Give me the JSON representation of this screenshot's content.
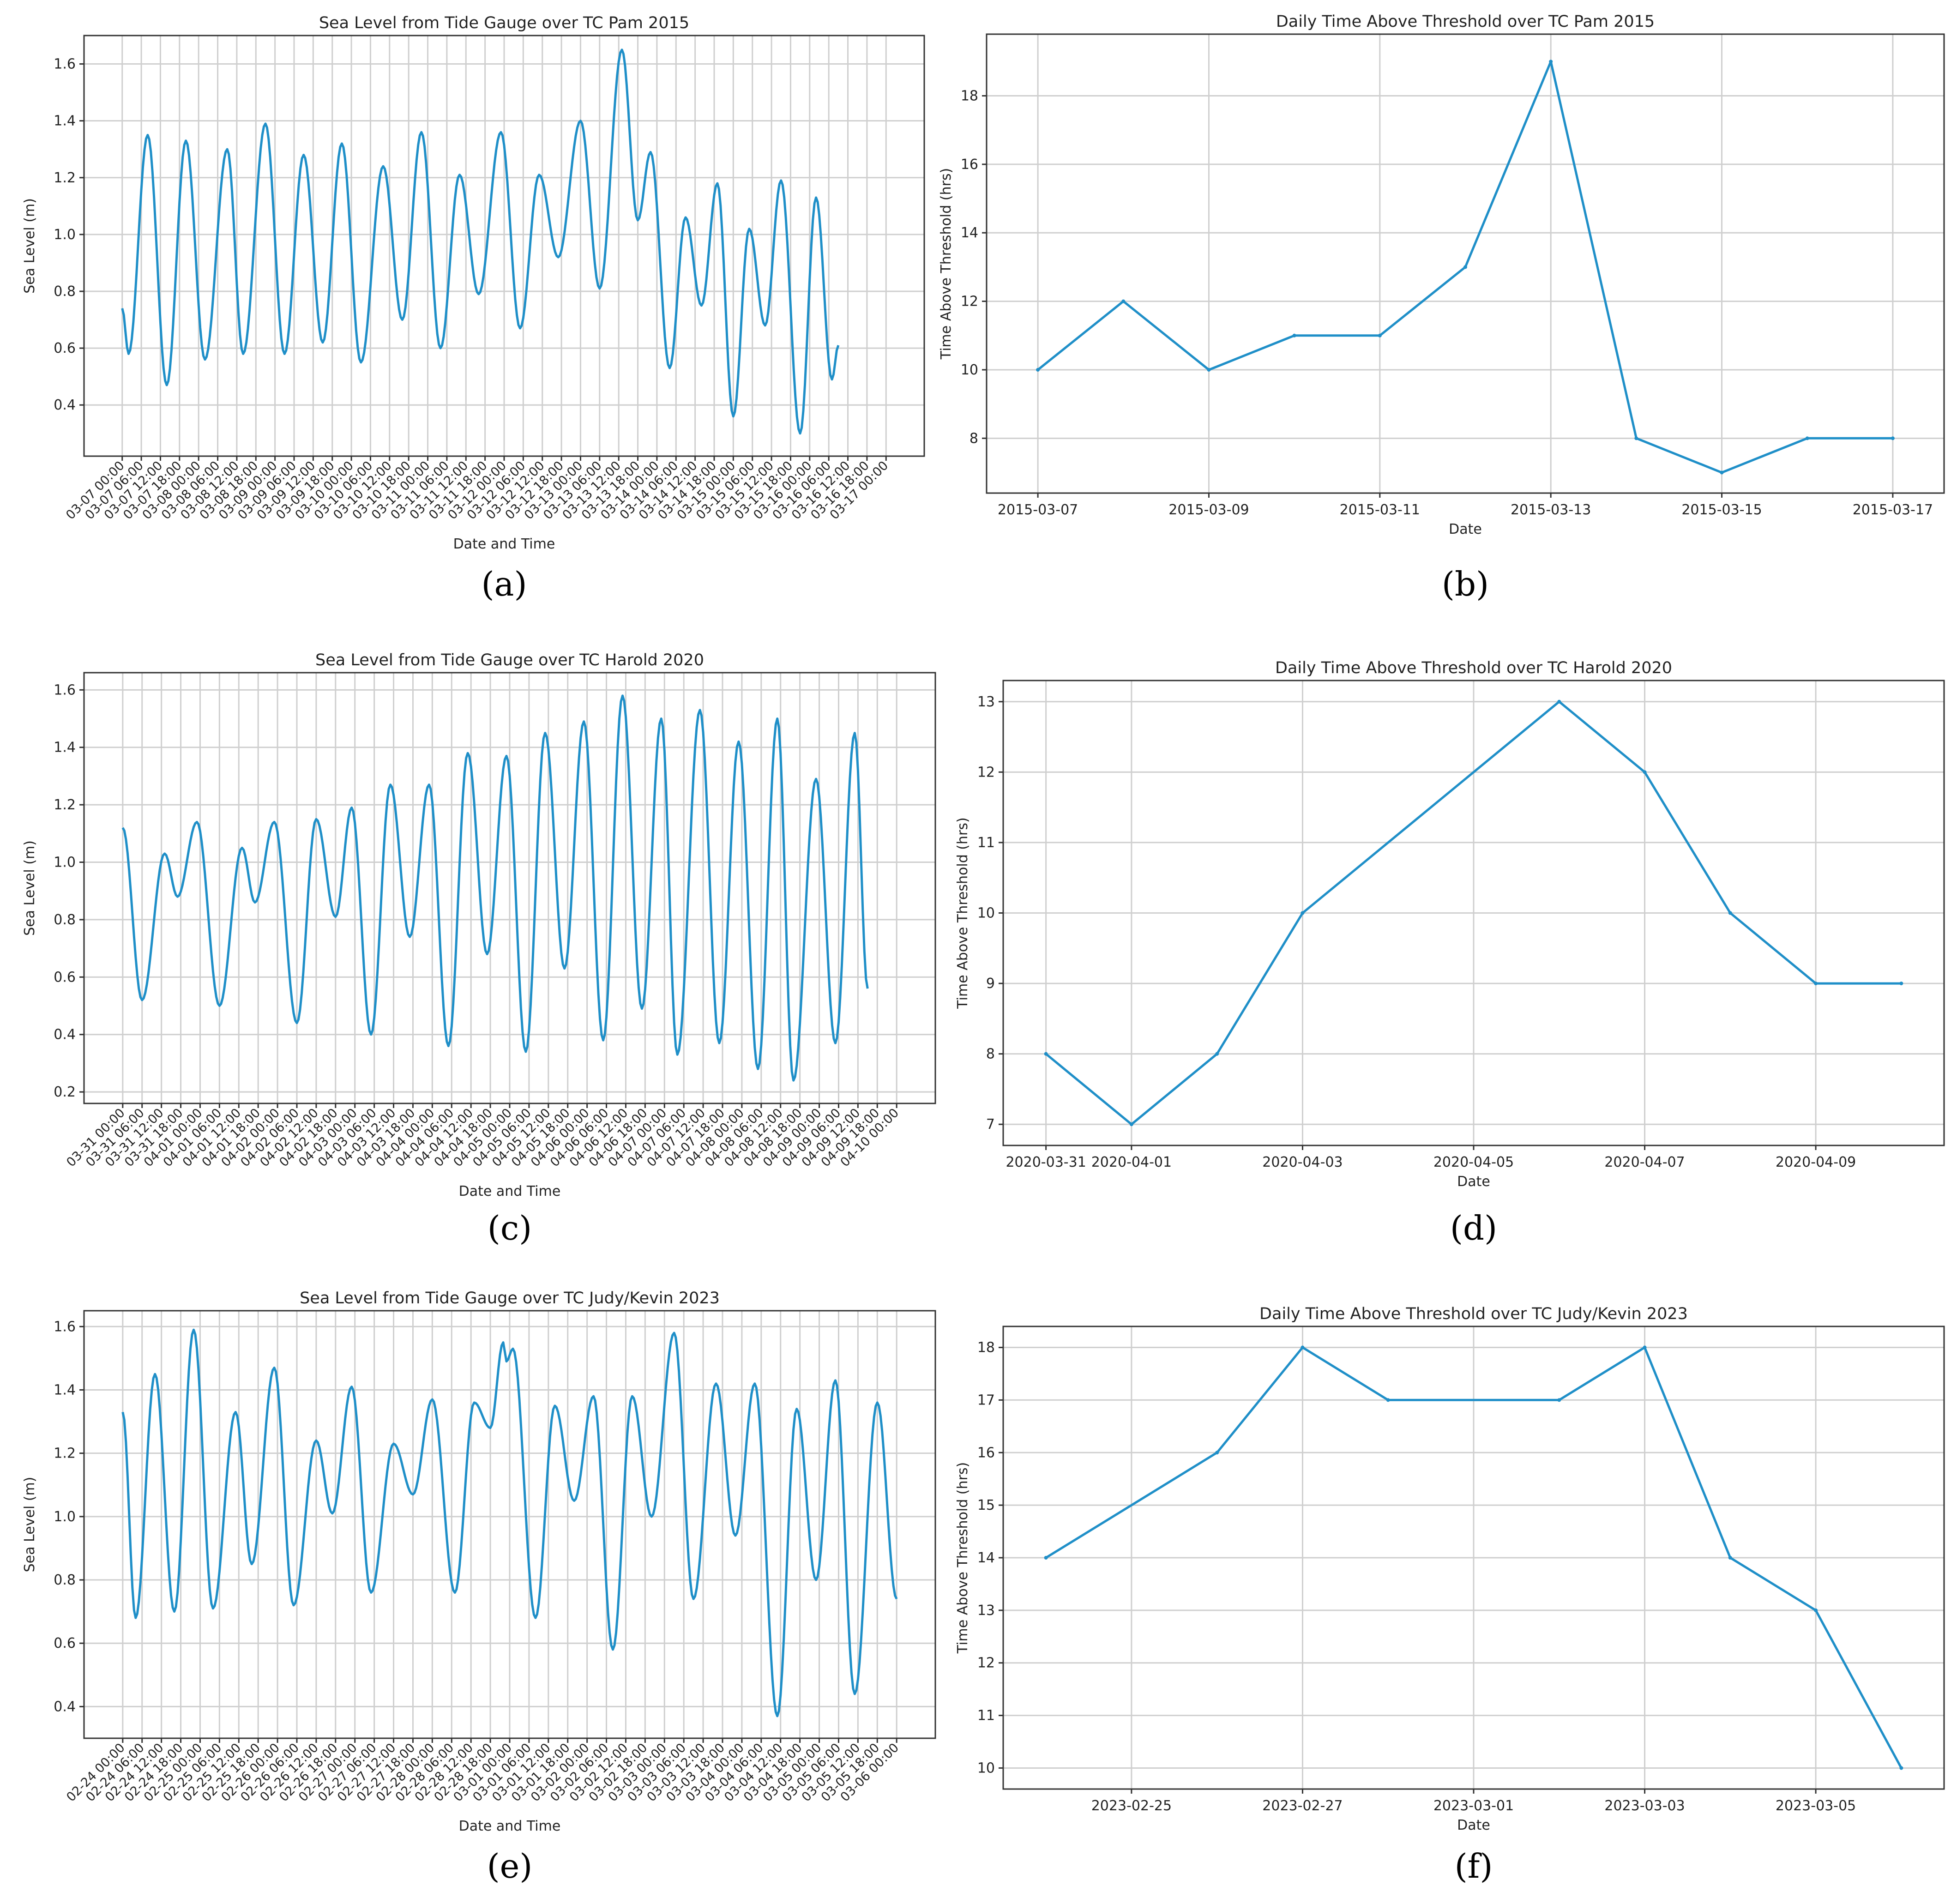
{
  "chart_data": [
    {
      "id": "a",
      "type": "line",
      "title": "Sea Level from Tide Gauge over TC Pam 2015",
      "xlabel": "Date and Time",
      "ylabel": "Sea Level (m)",
      "caption": "(a)",
      "color": "#1f8fc8",
      "ylim": [
        0.22,
        1.7
      ],
      "yticks": [
        0.4,
        0.6,
        0.8,
        1.0,
        1.2,
        1.4,
        1.6
      ],
      "ytick_labels": [
        "0.4",
        "0.6",
        "0.8",
        "1.0",
        "1.2",
        "1.4",
        "1.6"
      ],
      "x_start": "03-07 00:00",
      "step_hours": 6,
      "x_hours": [
        0,
        240
      ],
      "xtick_labels": [
        "03-07 00:00",
        "03-07 06:00",
        "03-07 12:00",
        "03-07 18:00",
        "03-08 00:00",
        "03-08 06:00",
        "03-08 12:00",
        "03-08 18:00",
        "03-09 00:00",
        "03-09 06:00",
        "03-09 12:00",
        "03-09 18:00",
        "03-10 00:00",
        "03-10 06:00",
        "03-10 12:00",
        "03-10 18:00",
        "03-11 00:00",
        "03-11 06:00",
        "03-11 12:00",
        "03-11 18:00",
        "03-12 00:00",
        "03-12 06:00",
        "03-12 12:00",
        "03-12 18:00",
        "03-13 00:00",
        "03-13 06:00",
        "03-13 12:00",
        "03-13 18:00",
        "03-14 00:00",
        "03-14 06:00",
        "03-14 12:00",
        "03-14 18:00",
        "03-15 00:00",
        "03-15 06:00",
        "03-15 12:00",
        "03-15 18:00",
        "03-16 00:00",
        "03-16 06:00",
        "03-16 12:00",
        "03-16 18:00",
        "03-17 00:00"
      ],
      "series": [
        {
          "name": "Sea Level",
          "extrema": [
            [
              0,
              0.74
            ],
            [
              2,
              0.58
            ],
            [
              8,
              1.35
            ],
            [
              14,
              0.47
            ],
            [
              20,
              1.33
            ],
            [
              26,
              0.56
            ],
            [
              33,
              1.3
            ],
            [
              38,
              0.58
            ],
            [
              45,
              1.39
            ],
            [
              51,
              0.58
            ],
            [
              57,
              1.28
            ],
            [
              63,
              0.62
            ],
            [
              69,
              1.32
            ],
            [
              75,
              0.55
            ],
            [
              82,
              1.24
            ],
            [
              88,
              0.7
            ],
            [
              94,
              1.36
            ],
            [
              100,
              0.6
            ],
            [
              106,
              1.21
            ],
            [
              112,
              0.79
            ],
            [
              119,
              1.36
            ],
            [
              125,
              0.67
            ],
            [
              131,
              1.21
            ],
            [
              137,
              0.92
            ],
            [
              144,
              1.4
            ],
            [
              150,
              0.81
            ],
            [
              157,
              1.65
            ],
            [
              162,
              1.05
            ],
            [
              166,
              1.29
            ],
            [
              172,
              0.53
            ],
            [
              177,
              1.06
            ],
            [
              182,
              0.75
            ],
            [
              187,
              1.18
            ],
            [
              192,
              0.36
            ],
            [
              197,
              1.02
            ],
            [
              202,
              0.68
            ],
            [
              207,
              1.19
            ],
            [
              213,
              0.3
            ],
            [
              218,
              1.13
            ],
            [
              223,
              0.49
            ],
            [
              225,
              0.61
            ]
          ]
        }
      ]
    },
    {
      "id": "b",
      "type": "line",
      "title": "Daily Time Above Threshold over TC Pam 2015",
      "xlabel": "Date",
      "ylabel": "Time Above Threshold (hrs)",
      "caption": "(b)",
      "color": "#1f8fc8",
      "ylim": [
        6.4,
        19.8
      ],
      "yticks": [
        8,
        10,
        12,
        14,
        16,
        18
      ],
      "ytick_labels": [
        "8",
        "10",
        "12",
        "14",
        "16",
        "18"
      ],
      "xlim": [
        -0.6,
        10.6
      ],
      "xticks": [
        0,
        2,
        4,
        6,
        8,
        10
      ],
      "xtick_labels": [
        "2015-03-07",
        "2015-03-09",
        "2015-03-11",
        "2015-03-13",
        "2015-03-15",
        "2015-03-17"
      ],
      "x": [
        0,
        1,
        2,
        3,
        4,
        5,
        6,
        7,
        8,
        9,
        10
      ],
      "series": [
        {
          "name": "Time Above Threshold",
          "values": [
            10,
            12,
            10,
            11,
            11,
            13,
            19,
            8,
            7,
            8,
            8
          ]
        }
      ]
    },
    {
      "id": "c",
      "type": "line",
      "title": "Sea Level from Tide Gauge over TC Harold 2020",
      "xlabel": "Date and Time",
      "ylabel": "Sea Level (m)",
      "caption": "(c)",
      "color": "#1f8fc8",
      "ylim": [
        0.16,
        1.66
      ],
      "yticks": [
        0.2,
        0.4,
        0.6,
        0.8,
        1.0,
        1.2,
        1.4,
        1.6
      ],
      "ytick_labels": [
        "0.2",
        "0.4",
        "0.6",
        "0.8",
        "1.0",
        "1.2",
        "1.4",
        "1.6"
      ],
      "x_start": "03-31 00:00",
      "step_hours": 6,
      "x_hours": [
        0,
        240
      ],
      "xtick_labels": [
        "03-31 00:00",
        "03-31 06:00",
        "03-31 12:00",
        "03-31 18:00",
        "04-01 00:00",
        "04-01 06:00",
        "04-01 12:00",
        "04-01 18:00",
        "04-02 00:00",
        "04-02 06:00",
        "04-02 12:00",
        "04-02 18:00",
        "04-03 00:00",
        "04-03 06:00",
        "04-03 12:00",
        "04-03 18:00",
        "04-04 00:00",
        "04-04 06:00",
        "04-04 12:00",
        "04-04 18:00",
        "04-05 00:00",
        "04-05 06:00",
        "04-05 12:00",
        "04-05 18:00",
        "04-06 00:00",
        "04-06 06:00",
        "04-06 12:00",
        "04-06 18:00",
        "04-07 00:00",
        "04-07 06:00",
        "04-07 12:00",
        "04-07 18:00",
        "04-08 00:00",
        "04-08 06:00",
        "04-08 12:00",
        "04-08 18:00",
        "04-09 00:00",
        "04-09 06:00",
        "04-09 12:00",
        "04-09 18:00",
        "04-10 00:00"
      ],
      "series": [
        {
          "name": "Sea Level",
          "extrema": [
            [
              0,
              1.12
            ],
            [
              6,
              0.52
            ],
            [
              13,
              1.03
            ],
            [
              17,
              0.88
            ],
            [
              23,
              1.14
            ],
            [
              30,
              0.5
            ],
            [
              37,
              1.05
            ],
            [
              41,
              0.86
            ],
            [
              47,
              1.14
            ],
            [
              54,
              0.44
            ],
            [
              60,
              1.15
            ],
            [
              66,
              0.81
            ],
            [
              71,
              1.19
            ],
            [
              77,
              0.4
            ],
            [
              83,
              1.27
            ],
            [
              89,
              0.74
            ],
            [
              95,
              1.27
            ],
            [
              101,
              0.36
            ],
            [
              107,
              1.38
            ],
            [
              113,
              0.68
            ],
            [
              119,
              1.37
            ],
            [
              125,
              0.34
            ],
            [
              131,
              1.45
            ],
            [
              137,
              0.63
            ],
            [
              143,
              1.49
            ],
            [
              149,
              0.38
            ],
            [
              155,
              1.58
            ],
            [
              161,
              0.49
            ],
            [
              167,
              1.5
            ],
            [
              172,
              0.33
            ],
            [
              179,
              1.53
            ],
            [
              185,
              0.37
            ],
            [
              191,
              1.42
            ],
            [
              197,
              0.28
            ],
            [
              203,
              1.5
            ],
            [
              208,
              0.24
            ],
            [
              215,
              1.29
            ],
            [
              221,
              0.37
            ],
            [
              227,
              1.45
            ],
            [
              231,
              0.56
            ]
          ]
        }
      ]
    },
    {
      "id": "d",
      "type": "line",
      "title": "Daily Time Above Threshold over TC Harold 2020",
      "xlabel": "Date",
      "ylabel": "Time Above Threshold (hrs)",
      "caption": "(d)",
      "color": "#1f8fc8",
      "ylim": [
        6.7,
        13.3
      ],
      "yticks": [
        7,
        8,
        9,
        10,
        11,
        12,
        13
      ],
      "ytick_labels": [
        "7",
        "8",
        "9",
        "10",
        "11",
        "12",
        "13"
      ],
      "xlim": [
        -0.5,
        10.5
      ],
      "xticks": [
        0,
        1,
        3,
        5,
        7,
        9
      ],
      "xtick_labels": [
        "2020-03-31",
        "2020-04-01",
        "2020-04-03",
        "2020-04-05",
        "2020-04-07",
        "2020-04-09"
      ],
      "x": [
        0,
        1,
        2,
        3,
        6,
        7,
        8,
        9,
        10
      ],
      "series": [
        {
          "name": "Time Above Threshold",
          "values": [
            8,
            7,
            8,
            10,
            13,
            12,
            10,
            9,
            9
          ]
        }
      ]
    },
    {
      "id": "e",
      "type": "line",
      "title": "Sea Level from Tide Gauge over TC Judy/Kevin 2023",
      "xlabel": "Date and Time",
      "ylabel": "Sea Level (m)",
      "caption": "(e)",
      "color": "#1f8fc8",
      "ylim": [
        0.3,
        1.65
      ],
      "yticks": [
        0.4,
        0.6,
        0.8,
        1.0,
        1.2,
        1.4,
        1.6
      ],
      "ytick_labels": [
        "0.4",
        "0.6",
        "0.8",
        "1.0",
        "1.2",
        "1.4",
        "1.6"
      ],
      "x_start": "02-24 00:00",
      "step_hours": 6,
      "x_hours": [
        0,
        240
      ],
      "xtick_labels": [
        "02-24 00:00",
        "02-24 06:00",
        "02-24 12:00",
        "02-24 18:00",
        "02-25 00:00",
        "02-25 06:00",
        "02-25 12:00",
        "02-25 18:00",
        "02-26 00:00",
        "02-26 06:00",
        "02-26 12:00",
        "02-26 18:00",
        "02-27 00:00",
        "02-27 06:00",
        "02-27 12:00",
        "02-27 18:00",
        "02-28 00:00",
        "02-28 06:00",
        "02-28 12:00",
        "02-28 18:00",
        "03-01 00:00",
        "03-01 06:00",
        "03-01 12:00",
        "03-01 18:00",
        "03-02 00:00",
        "03-02 06:00",
        "03-02 12:00",
        "03-02 18:00",
        "03-03 00:00",
        "03-03 06:00",
        "03-03 12:00",
        "03-03 18:00",
        "03-04 00:00",
        "03-04 06:00",
        "03-04 12:00",
        "03-04 18:00",
        "03-05 00:00",
        "03-05 06:00",
        "03-05 12:00",
        "03-05 18:00",
        "03-06 00:00"
      ],
      "series": [
        {
          "name": "Sea Level",
          "extrema": [
            [
              0,
              1.33
            ],
            [
              4,
              0.68
            ],
            [
              10,
              1.45
            ],
            [
              16,
              0.7
            ],
            [
              22,
              1.59
            ],
            [
              28,
              0.71
            ],
            [
              35,
              1.33
            ],
            [
              40,
              0.85
            ],
            [
              47,
              1.47
            ],
            [
              53,
              0.72
            ],
            [
              60,
              1.24
            ],
            [
              65,
              1.01
            ],
            [
              71,
              1.41
            ],
            [
              77,
              0.76
            ],
            [
              84,
              1.23
            ],
            [
              90,
              1.07
            ],
            [
              96,
              1.37
            ],
            [
              103,
              0.76
            ],
            [
              109,
              1.36
            ],
            [
              114,
              1.28
            ],
            [
              118,
              1.55
            ],
            [
              119,
              1.49
            ],
            [
              121,
              1.53
            ],
            [
              128,
              0.68
            ],
            [
              134,
              1.35
            ],
            [
              140,
              1.05
            ],
            [
              146,
              1.38
            ],
            [
              152,
              0.58
            ],
            [
              158,
              1.38
            ],
            [
              164,
              1.0
            ],
            [
              171,
              1.58
            ],
            [
              177,
              0.74
            ],
            [
              184,
              1.42
            ],
            [
              190,
              0.94
            ],
            [
              196,
              1.42
            ],
            [
              203,
              0.37
            ],
            [
              209,
              1.34
            ],
            [
              215,
              0.8
            ],
            [
              221,
              1.43
            ],
            [
              227,
              0.44
            ],
            [
              234,
              1.36
            ],
            [
              240,
              0.74
            ]
          ]
        }
      ]
    },
    {
      "id": "f",
      "type": "line",
      "title": "Daily Time Above Threshold over TC Judy/Kevin 2023",
      "xlabel": "Date",
      "ylabel": "Time Above Threshold (hrs)",
      "caption": "(f)",
      "color": "#1f8fc8",
      "ylim": [
        9.6,
        18.4
      ],
      "yticks": [
        10,
        11,
        12,
        13,
        14,
        15,
        16,
        17,
        18
      ],
      "ytick_labels": [
        "10",
        "11",
        "12",
        "13",
        "14",
        "15",
        "16",
        "17",
        "18"
      ],
      "xlim": [
        -0.5,
        10.5
      ],
      "xticks": [
        1,
        3,
        5,
        7,
        9
      ],
      "xtick_labels": [
        "2023-02-25",
        "2023-02-27",
        "2023-03-01",
        "2023-03-03",
        "2023-03-05"
      ],
      "x": [
        0,
        2,
        3,
        4,
        6,
        7,
        8,
        9,
        10
      ],
      "series": [
        {
          "name": "Time Above Threshold",
          "values": [
            14,
            16,
            18,
            17,
            17,
            18,
            14,
            13,
            10
          ]
        }
      ]
    }
  ]
}
